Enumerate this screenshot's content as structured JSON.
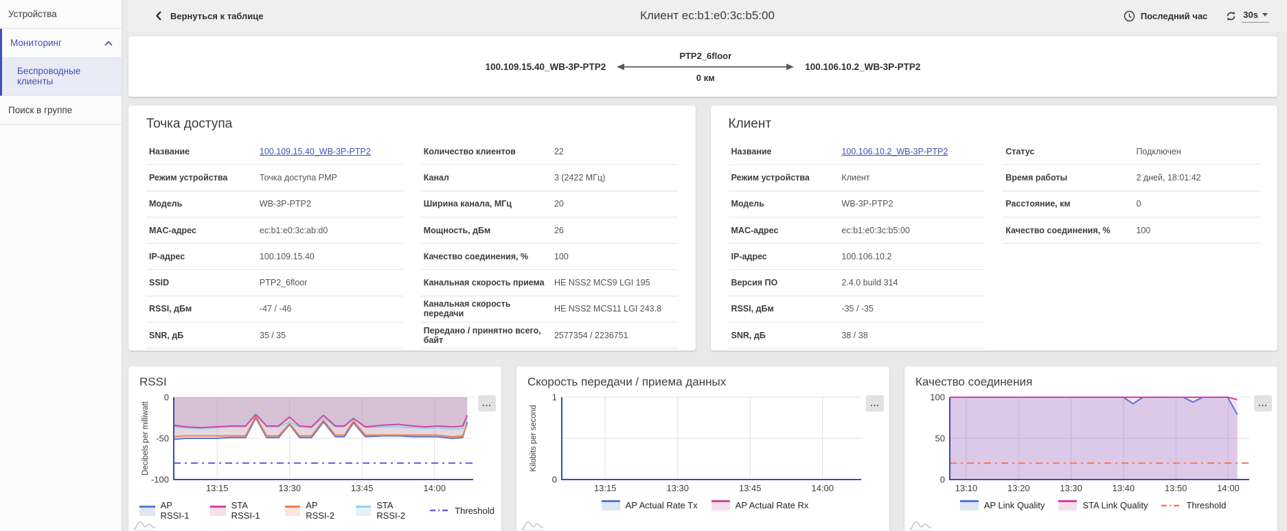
{
  "sidebar": {
    "items": [
      {
        "label": "Устройства"
      },
      {
        "label": "Мониторинг"
      },
      {
        "label": "Беспроводные клиенты"
      },
      {
        "label": "Поиск в группе"
      }
    ]
  },
  "header": {
    "back_label": "Вернуться к таблице",
    "title": "Клиент ec:b1:e0:3c:b5:00",
    "time_range": "Последний час",
    "refresh_interval": "30s"
  },
  "link_diagram": {
    "left_node": "100.109.15.40_WB-3P-PTP2",
    "ssid": "PTP2_6floor",
    "distance": "0 км",
    "right_node": "100.106.10.2_WB-3P-PTP2"
  },
  "access_point": {
    "title": "Точка доступа",
    "rows_left": [
      {
        "label": "Название",
        "value": "100.109.15.40_WB-3P-PTP2",
        "link": true
      },
      {
        "label": "Режим устройства",
        "value": "Точка доступа PMP"
      },
      {
        "label": "Модель",
        "value": "WB-3P-PTP2"
      },
      {
        "label": "MAC-адрес",
        "value": "ec:b1:e0:3c:ab:d0"
      },
      {
        "label": "IP-адрес",
        "value": "100.109.15.40"
      },
      {
        "label": "SSID",
        "value": "PTP2_6floor"
      },
      {
        "label": "RSSI, дБм",
        "value": "-47 / -46"
      },
      {
        "label": "SNR, дБ",
        "value": "35 / 35"
      }
    ],
    "rows_right": [
      {
        "label": "Количество клиентов",
        "value": "22"
      },
      {
        "label": "Канал",
        "value": "3 (2422 МГц)"
      },
      {
        "label": "Ширина канала, МГц",
        "value": "20"
      },
      {
        "label": "Мощность, дБм",
        "value": "26"
      },
      {
        "label": "Качество соединения, %",
        "value": "100"
      },
      {
        "label": "Канальная скорость приема",
        "value": "HE NSS2 MCS9 LGI 195"
      },
      {
        "label": "Канальная скорость передачи",
        "value": "HE NSS2 MCS11 LGI 243.8"
      },
      {
        "label": "Передано / принятно всего, байт",
        "value": "2577354 / 2236751"
      }
    ]
  },
  "client": {
    "title": "Клиент",
    "rows_left": [
      {
        "label": "Название",
        "value": "100.106.10.2_WB-3P-PTP2",
        "link": true
      },
      {
        "label": "Режим устройства",
        "value": "Клиент"
      },
      {
        "label": "Модель",
        "value": "WB-3P-PTP2"
      },
      {
        "label": "MAC-адрес",
        "value": "ec:b1:e0:3c:b5:00"
      },
      {
        "label": "IP-адрес",
        "value": "100.106.10.2"
      },
      {
        "label": "Версия ПО",
        "value": "2.4.0 build 314"
      },
      {
        "label": "RSSI, дБм",
        "value": "-35 / -35"
      },
      {
        "label": "SNR, дБ",
        "value": "38 / 38"
      }
    ],
    "rows_right": [
      {
        "label": "Статус",
        "value": "Подключен"
      },
      {
        "label": "Время работы",
        "value": "2 дней, 18:01:42"
      },
      {
        "label": "Расстояние, км",
        "value": "0"
      },
      {
        "label": "Качество соединения, %",
        "value": "100"
      }
    ]
  },
  "colors": {
    "accent": "#3f51b5",
    "axis": "#3949ab",
    "grid": "#e0e0e0",
    "blue": "#5874d8",
    "magenta": "#d4439c",
    "orange": "#ef7f4e",
    "cyan": "#8fd2ef",
    "threshold_purple": "#6f5bd6",
    "threshold_orange": "#f6795a"
  },
  "chart_data": [
    {
      "type": "area",
      "title": "RSSI",
      "ylabel": "Decibels per milliwatt",
      "ylim": [
        -100,
        0
      ],
      "yticks": [
        0,
        -50,
        -100
      ],
      "ygrid": [
        0,
        -50
      ],
      "xticks": [
        {
          "label": "13:15",
          "pos": 0.145
        },
        {
          "label": "13:30",
          "pos": 0.387
        },
        {
          "label": "13:45",
          "pos": 0.629
        },
        {
          "label": "14:00",
          "pos": 0.871
        }
      ],
      "x": [
        0,
        0.04,
        0.09,
        0.14,
        0.19,
        0.24,
        0.274,
        0.31,
        0.35,
        0.387,
        0.42,
        0.46,
        0.5,
        0.54,
        0.57,
        0.6,
        0.64,
        0.7,
        0.75,
        0.8,
        0.84,
        0.88,
        0.93,
        0.965,
        0.98
      ],
      "series": [
        {
          "name": "AP RSSI-1",
          "color": "#5874d8",
          "fill": "rgba(88,116,216,0.16)",
          "legend_fill": "#dde6f6",
          "y": [
            -51,
            -50,
            -50,
            -50,
            -49,
            -49,
            -25,
            -49,
            -49,
            -33,
            -49,
            -49,
            -30,
            -48,
            -48,
            -31,
            -48,
            -47,
            -47,
            -48,
            -48,
            -48,
            -50,
            -49,
            -30
          ]
        },
        {
          "name": "AP RSSI-2",
          "color": "#ef7f4e",
          "fill": "rgba(239,127,78,0.16)",
          "legend_fill": "#fde5da",
          "y": [
            -48,
            -47,
            -47,
            -47,
            -47,
            -47,
            -23,
            -47,
            -47,
            -32,
            -47,
            -47,
            -28,
            -46,
            -46,
            -29,
            -46,
            -46,
            -46,
            -46,
            -46,
            -46,
            -48,
            -47,
            -32
          ]
        },
        {
          "name": "STA RSSI-2",
          "color": "#8fd2ef",
          "fill": "rgba(143,210,239,0.16)",
          "legend_fill": "#e0f3fb",
          "y": [
            -36,
            -37,
            -38,
            -37,
            -36,
            -36,
            -18,
            -36,
            -36,
            -30,
            -36,
            -37,
            -25,
            -36,
            -36,
            -24,
            -37,
            -36,
            -36,
            -37,
            -38,
            -37,
            -39,
            -38,
            -25
          ]
        },
        {
          "name": "STA RSSI-1",
          "color": "#d4439c",
          "fill": "rgba(212,67,156,0.14)",
          "legend_fill": "#f8ddeb",
          "y": [
            -34,
            -36,
            -37,
            -36,
            -35,
            -35,
            -21,
            -35,
            -35,
            -24,
            -35,
            -36,
            -22,
            -35,
            -35,
            -26,
            -36,
            -34,
            -33,
            -35,
            -36,
            -35,
            -36,
            -35,
            -22
          ]
        }
      ],
      "legend_order": [
        "AP RSSI-1",
        "STA RSSI-1",
        "AP RSSI-2",
        "STA RSSI-2"
      ],
      "threshold": {
        "name": "Threshold",
        "value": -80,
        "color": "#6f5bd6"
      }
    },
    {
      "type": "line",
      "title": "Скорость передачи / приема данных",
      "ylabel": "Kilobits per second",
      "ylim": [
        0,
        1
      ],
      "yticks": [
        1,
        0
      ],
      "ygrid": [
        1,
        0.5
      ],
      "xticks": [
        {
          "label": "13:15",
          "pos": 0.145
        },
        {
          "label": "13:30",
          "pos": 0.387
        },
        {
          "label": "13:45",
          "pos": 0.629
        },
        {
          "label": "14:00",
          "pos": 0.871
        }
      ],
      "x": [
        0,
        1
      ],
      "series": [
        {
          "name": "AP Actual Rate Rx",
          "color": "#d4439c",
          "legend_fill": "#f8ddeb",
          "y": [
            0,
            0
          ]
        },
        {
          "name": "AP Actual Rate Tx",
          "color": "#5874d8",
          "legend_fill": "#dde6f6",
          "y": [
            0,
            0
          ]
        }
      ],
      "legend_order": [
        "AP Actual Rate Tx",
        "AP Actual Rate Rx"
      ]
    },
    {
      "type": "area",
      "title": "Качество соединения",
      "ylabel": "",
      "ylim": [
        0,
        100
      ],
      "yticks": [
        100,
        50,
        0
      ],
      "ygrid": [
        100,
        50
      ],
      "xticks": [
        {
          "label": "13:10",
          "pos": 0.055
        },
        {
          "label": "13:20",
          "pos": 0.23
        },
        {
          "label": "13:30",
          "pos": 0.405
        },
        {
          "label": "13:40",
          "pos": 0.58
        },
        {
          "label": "13:50",
          "pos": 0.755
        },
        {
          "label": "14:00",
          "pos": 0.93
        }
      ],
      "series": [
        {
          "name": "AP Link Quality",
          "color": "#5874d8",
          "fill": "rgba(88,116,216,0.20)",
          "legend_fill": "#dde6f6",
          "x": [
            0,
            0.58,
            0.612,
            0.645,
            0.78,
            0.812,
            0.845,
            0.915,
            0.928,
            0.96
          ],
          "y": [
            100,
            100,
            92,
            100,
            100,
            94,
            100,
            100,
            100,
            79
          ]
        },
        {
          "name": "STA Link Quality",
          "color": "#d4439c",
          "fill": "rgba(212,67,156,0.16)",
          "legend_fill": "#f8ddeb",
          "x": [
            0,
            0.93,
            0.96
          ],
          "y": [
            100,
            100,
            97
          ]
        }
      ],
      "legend_order": [
        "AP Link Quality",
        "STA Link Quality"
      ],
      "threshold": {
        "name": "Threshold",
        "value": 20,
        "color": "#f6795a"
      }
    }
  ]
}
